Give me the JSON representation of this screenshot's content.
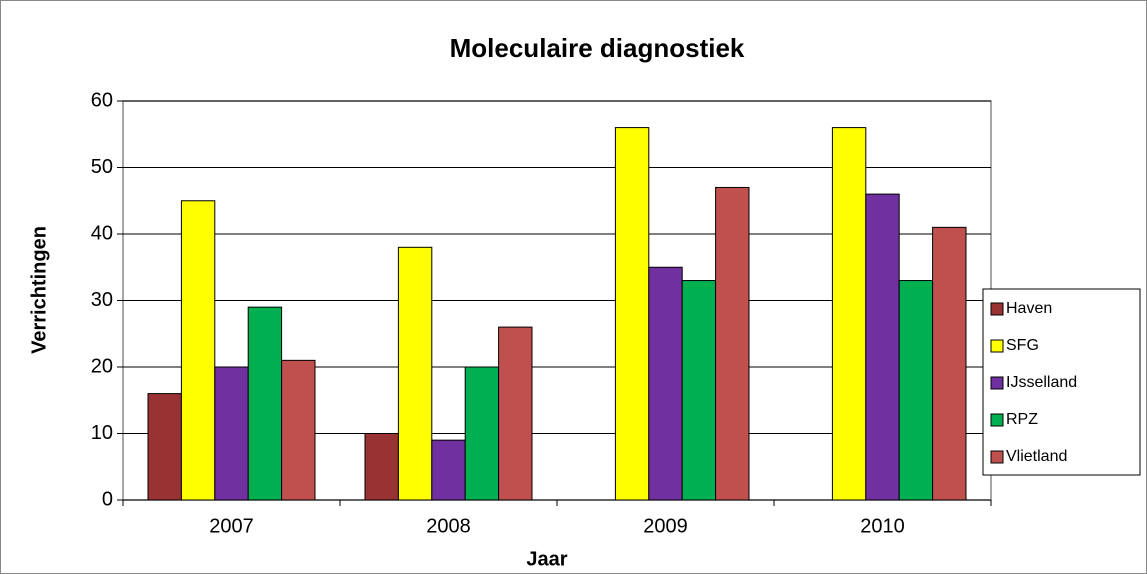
{
  "chart_data": {
    "type": "bar",
    "title": "Moleculaire diagnostiek",
    "x_label": "Jaar",
    "y_label": "Verrichtingen",
    "categories": [
      "2007",
      "2008",
      "2009",
      "2010"
    ],
    "series": [
      {
        "name": "Haven",
        "color": "#993333",
        "values": [
          16,
          10,
          0,
          0
        ]
      },
      {
        "name": "SFG",
        "color": "#ffff00",
        "values": [
          45,
          38,
          56,
          56
        ]
      },
      {
        "name": "IJsselland",
        "color": "#7030a0",
        "values": [
          20,
          9,
          35,
          46
        ]
      },
      {
        "name": "RPZ",
        "color": "#00b050",
        "values": [
          29,
          20,
          33,
          33
        ]
      },
      {
        "name": "Vlietland",
        "color": "#c0504d",
        "values": [
          21,
          26,
          47,
          41
        ]
      }
    ],
    "ylim": [
      0,
      60
    ],
    "yticks": [
      0,
      10,
      20,
      30,
      40,
      50,
      60
    ],
    "grid": true,
    "legend": "right"
  }
}
